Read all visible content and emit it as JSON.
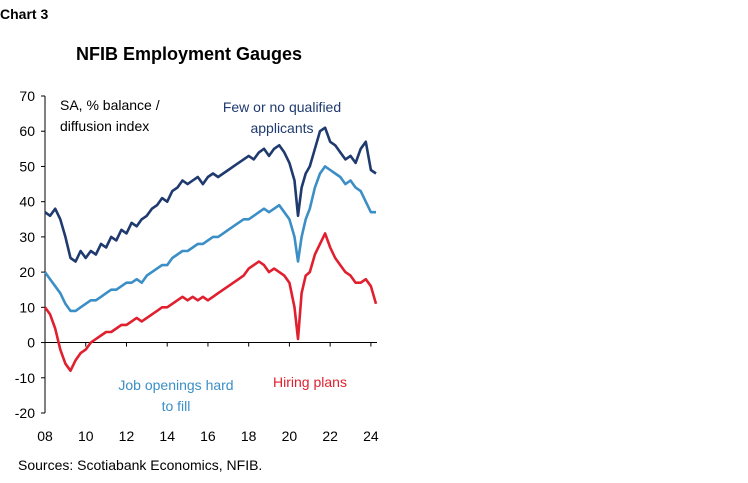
{
  "header": {
    "chart_label": "Chart 3",
    "title": "NFIB Employment Gauges"
  },
  "footer": {
    "source": "Sources: Scotiabank Economics, NFIB."
  },
  "colors": {
    "navy": "#1f3a6e",
    "lightblue": "#3b8fc6",
    "red": "#e0202e",
    "axis": "#000000"
  },
  "chart_data": {
    "type": "line",
    "title": "NFIB Employment Gauges",
    "xlabel": "",
    "ylabel": "",
    "ylim": [
      -20,
      70
    ],
    "xlim": [
      2008.0,
      2024.3
    ],
    "yticks": [
      -20,
      -10,
      0,
      10,
      20,
      30,
      40,
      50,
      60,
      70
    ],
    "xticks": [
      "08",
      "10",
      "12",
      "14",
      "16",
      "18",
      "20",
      "22",
      "24"
    ],
    "xtick_years": [
      2008,
      2010,
      2012,
      2014,
      2016,
      2018,
      2020,
      2022,
      2024
    ],
    "grid": false,
    "legend": "none",
    "annotations": {
      "units_line1": "SA, % balance /",
      "units_line2": "diffusion index",
      "navy_line1": "Few or no qualified",
      "navy_line2": "applicants",
      "lightblue_line1": "Job openings hard",
      "lightblue_line2": "to fill",
      "red_label": "Hiring plans"
    },
    "series": [
      {
        "name": "Few or no qualified applicants",
        "color": "#1f3a6e",
        "points": [
          [
            2008.0,
            37
          ],
          [
            2008.25,
            36
          ],
          [
            2008.5,
            38
          ],
          [
            2008.75,
            35
          ],
          [
            2009.0,
            30
          ],
          [
            2009.25,
            24
          ],
          [
            2009.5,
            23
          ],
          [
            2009.75,
            26
          ],
          [
            2010.0,
            24
          ],
          [
            2010.25,
            26
          ],
          [
            2010.5,
            25
          ],
          [
            2010.75,
            28
          ],
          [
            2011.0,
            27
          ],
          [
            2011.25,
            30
          ],
          [
            2011.5,
            29
          ],
          [
            2011.75,
            32
          ],
          [
            2012.0,
            31
          ],
          [
            2012.25,
            34
          ],
          [
            2012.5,
            33
          ],
          [
            2012.75,
            35
          ],
          [
            2013.0,
            36
          ],
          [
            2013.25,
            38
          ],
          [
            2013.5,
            39
          ],
          [
            2013.75,
            41
          ],
          [
            2014.0,
            40
          ],
          [
            2014.25,
            43
          ],
          [
            2014.5,
            44
          ],
          [
            2014.75,
            46
          ],
          [
            2015.0,
            45
          ],
          [
            2015.25,
            46
          ],
          [
            2015.5,
            47
          ],
          [
            2015.75,
            45
          ],
          [
            2016.0,
            47
          ],
          [
            2016.25,
            48
          ],
          [
            2016.5,
            47
          ],
          [
            2016.75,
            48
          ],
          [
            2017.0,
            49
          ],
          [
            2017.25,
            50
          ],
          [
            2017.5,
            51
          ],
          [
            2017.75,
            52
          ],
          [
            2018.0,
            53
          ],
          [
            2018.25,
            52
          ],
          [
            2018.5,
            54
          ],
          [
            2018.75,
            55
          ],
          [
            2019.0,
            53
          ],
          [
            2019.25,
            55
          ],
          [
            2019.5,
            56
          ],
          [
            2019.75,
            54
          ],
          [
            2020.0,
            51
          ],
          [
            2020.25,
            46
          ],
          [
            2020.42,
            36
          ],
          [
            2020.6,
            44
          ],
          [
            2020.8,
            48
          ],
          [
            2021.0,
            50
          ],
          [
            2021.25,
            55
          ],
          [
            2021.5,
            60
          ],
          [
            2021.75,
            61
          ],
          [
            2022.0,
            57
          ],
          [
            2022.25,
            56
          ],
          [
            2022.5,
            54
          ],
          [
            2022.75,
            52
          ],
          [
            2023.0,
            53
          ],
          [
            2023.25,
            51
          ],
          [
            2023.5,
            55
          ],
          [
            2023.75,
            57
          ],
          [
            2024.0,
            49
          ],
          [
            2024.25,
            48
          ]
        ]
      },
      {
        "name": "Job openings hard to fill",
        "color": "#3b8fc6",
        "points": [
          [
            2008.0,
            20
          ],
          [
            2008.25,
            18
          ],
          [
            2008.5,
            16
          ],
          [
            2008.75,
            14
          ],
          [
            2009.0,
            11
          ],
          [
            2009.25,
            9
          ],
          [
            2009.5,
            9
          ],
          [
            2009.75,
            10
          ],
          [
            2010.0,
            11
          ],
          [
            2010.25,
            12
          ],
          [
            2010.5,
            12
          ],
          [
            2010.75,
            13
          ],
          [
            2011.0,
            14
          ],
          [
            2011.25,
            15
          ],
          [
            2011.5,
            15
          ],
          [
            2011.75,
            16
          ],
          [
            2012.0,
            17
          ],
          [
            2012.25,
            17
          ],
          [
            2012.5,
            18
          ],
          [
            2012.75,
            17
          ],
          [
            2013.0,
            19
          ],
          [
            2013.25,
            20
          ],
          [
            2013.5,
            21
          ],
          [
            2013.75,
            22
          ],
          [
            2014.0,
            22
          ],
          [
            2014.25,
            24
          ],
          [
            2014.5,
            25
          ],
          [
            2014.75,
            26
          ],
          [
            2015.0,
            26
          ],
          [
            2015.25,
            27
          ],
          [
            2015.5,
            28
          ],
          [
            2015.75,
            28
          ],
          [
            2016.0,
            29
          ],
          [
            2016.25,
            30
          ],
          [
            2016.5,
            30
          ],
          [
            2016.75,
            31
          ],
          [
            2017.0,
            32
          ],
          [
            2017.25,
            33
          ],
          [
            2017.5,
            34
          ],
          [
            2017.75,
            35
          ],
          [
            2018.0,
            35
          ],
          [
            2018.25,
            36
          ],
          [
            2018.5,
            37
          ],
          [
            2018.75,
            38
          ],
          [
            2019.0,
            37
          ],
          [
            2019.25,
            38
          ],
          [
            2019.5,
            39
          ],
          [
            2019.75,
            37
          ],
          [
            2020.0,
            35
          ],
          [
            2020.25,
            30
          ],
          [
            2020.42,
            23
          ],
          [
            2020.6,
            30
          ],
          [
            2020.8,
            35
          ],
          [
            2021.0,
            38
          ],
          [
            2021.25,
            44
          ],
          [
            2021.5,
            48
          ],
          [
            2021.75,
            50
          ],
          [
            2022.0,
            49
          ],
          [
            2022.25,
            48
          ],
          [
            2022.5,
            47
          ],
          [
            2022.75,
            45
          ],
          [
            2023.0,
            46
          ],
          [
            2023.25,
            44
          ],
          [
            2023.5,
            43
          ],
          [
            2023.75,
            40
          ],
          [
            2024.0,
            37
          ],
          [
            2024.25,
            37
          ]
        ]
      },
      {
        "name": "Hiring plans",
        "color": "#e0202e",
        "points": [
          [
            2008.0,
            10
          ],
          [
            2008.25,
            8
          ],
          [
            2008.5,
            4
          ],
          [
            2008.75,
            -2
          ],
          [
            2009.0,
            -6
          ],
          [
            2009.25,
            -8
          ],
          [
            2009.5,
            -5
          ],
          [
            2009.75,
            -3
          ],
          [
            2010.0,
            -2
          ],
          [
            2010.25,
            0
          ],
          [
            2010.5,
            1
          ],
          [
            2010.75,
            2
          ],
          [
            2011.0,
            3
          ],
          [
            2011.25,
            3
          ],
          [
            2011.5,
            4
          ],
          [
            2011.75,
            5
          ],
          [
            2012.0,
            5
          ],
          [
            2012.25,
            6
          ],
          [
            2012.5,
            7
          ],
          [
            2012.75,
            6
          ],
          [
            2013.0,
            7
          ],
          [
            2013.25,
            8
          ],
          [
            2013.5,
            9
          ],
          [
            2013.75,
            10
          ],
          [
            2014.0,
            10
          ],
          [
            2014.25,
            11
          ],
          [
            2014.5,
            12
          ],
          [
            2014.75,
            13
          ],
          [
            2015.0,
            12
          ],
          [
            2015.25,
            13
          ],
          [
            2015.5,
            12
          ],
          [
            2015.75,
            13
          ],
          [
            2016.0,
            12
          ],
          [
            2016.25,
            13
          ],
          [
            2016.5,
            14
          ],
          [
            2016.75,
            15
          ],
          [
            2017.0,
            16
          ],
          [
            2017.25,
            17
          ],
          [
            2017.5,
            18
          ],
          [
            2017.75,
            19
          ],
          [
            2018.0,
            21
          ],
          [
            2018.25,
            22
          ],
          [
            2018.5,
            23
          ],
          [
            2018.75,
            22
          ],
          [
            2019.0,
            20
          ],
          [
            2019.25,
            21
          ],
          [
            2019.5,
            20
          ],
          [
            2019.75,
            19
          ],
          [
            2020.0,
            17
          ],
          [
            2020.25,
            10
          ],
          [
            2020.42,
            1
          ],
          [
            2020.6,
            14
          ],
          [
            2020.8,
            19
          ],
          [
            2021.0,
            20
          ],
          [
            2021.25,
            25
          ],
          [
            2021.5,
            28
          ],
          [
            2021.75,
            31
          ],
          [
            2022.0,
            27
          ],
          [
            2022.25,
            24
          ],
          [
            2022.5,
            22
          ],
          [
            2022.75,
            20
          ],
          [
            2023.0,
            19
          ],
          [
            2023.25,
            17
          ],
          [
            2023.5,
            17
          ],
          [
            2023.75,
            18
          ],
          [
            2024.0,
            16
          ],
          [
            2024.25,
            11
          ]
        ]
      }
    ]
  }
}
